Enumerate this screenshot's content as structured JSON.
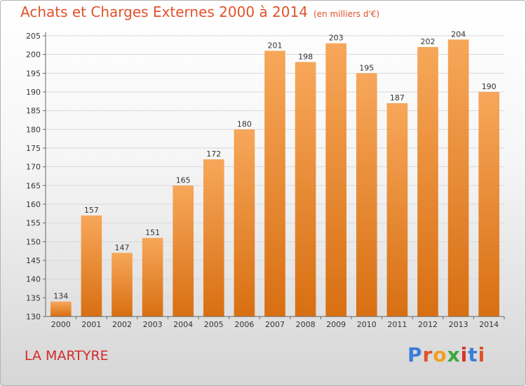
{
  "header": {
    "title": "Achats et Charges Externes 2000 à 2014",
    "subtitle": "(en milliers d'€)"
  },
  "footer": {
    "place": "LA MARTYRE",
    "logo_text": "Proxiti",
    "logo_colors": [
      "#3b7dd8",
      "#e0522a",
      "#f0a020",
      "#3ba83b",
      "#d8342a",
      "#3b7dd8",
      "#e0522a"
    ]
  },
  "colors": {
    "bar_top": "#f7a75a",
    "bar_bottom": "#d86f12",
    "grid": "#d8d8d8",
    "axis": "#666666",
    "title": "#e0522a"
  },
  "chart_data": {
    "type": "bar",
    "categories": [
      "2000",
      "2001",
      "2002",
      "2003",
      "2004",
      "2005",
      "2006",
      "2007",
      "2008",
      "2009",
      "2010",
      "2011",
      "2012",
      "2013",
      "2014"
    ],
    "values": [
      134,
      157,
      147,
      151,
      165,
      172,
      180,
      201,
      198,
      203,
      195,
      187,
      202,
      204,
      190
    ],
    "data_labels": [
      "134",
      "157",
      "147",
      "151",
      "165",
      "172",
      "180",
      "201",
      "198",
      "203",
      "195",
      "187",
      "202",
      "204",
      "190"
    ],
    "title": "Achats et Charges Externes 2000 à 2014",
    "xlabel": "",
    "ylabel": "",
    "ylim": [
      130,
      205
    ],
    "yticks": [
      130,
      135,
      140,
      145,
      150,
      155,
      160,
      165,
      170,
      175,
      180,
      185,
      190,
      195,
      200,
      205
    ],
    "grid": true,
    "legend": "none"
  }
}
